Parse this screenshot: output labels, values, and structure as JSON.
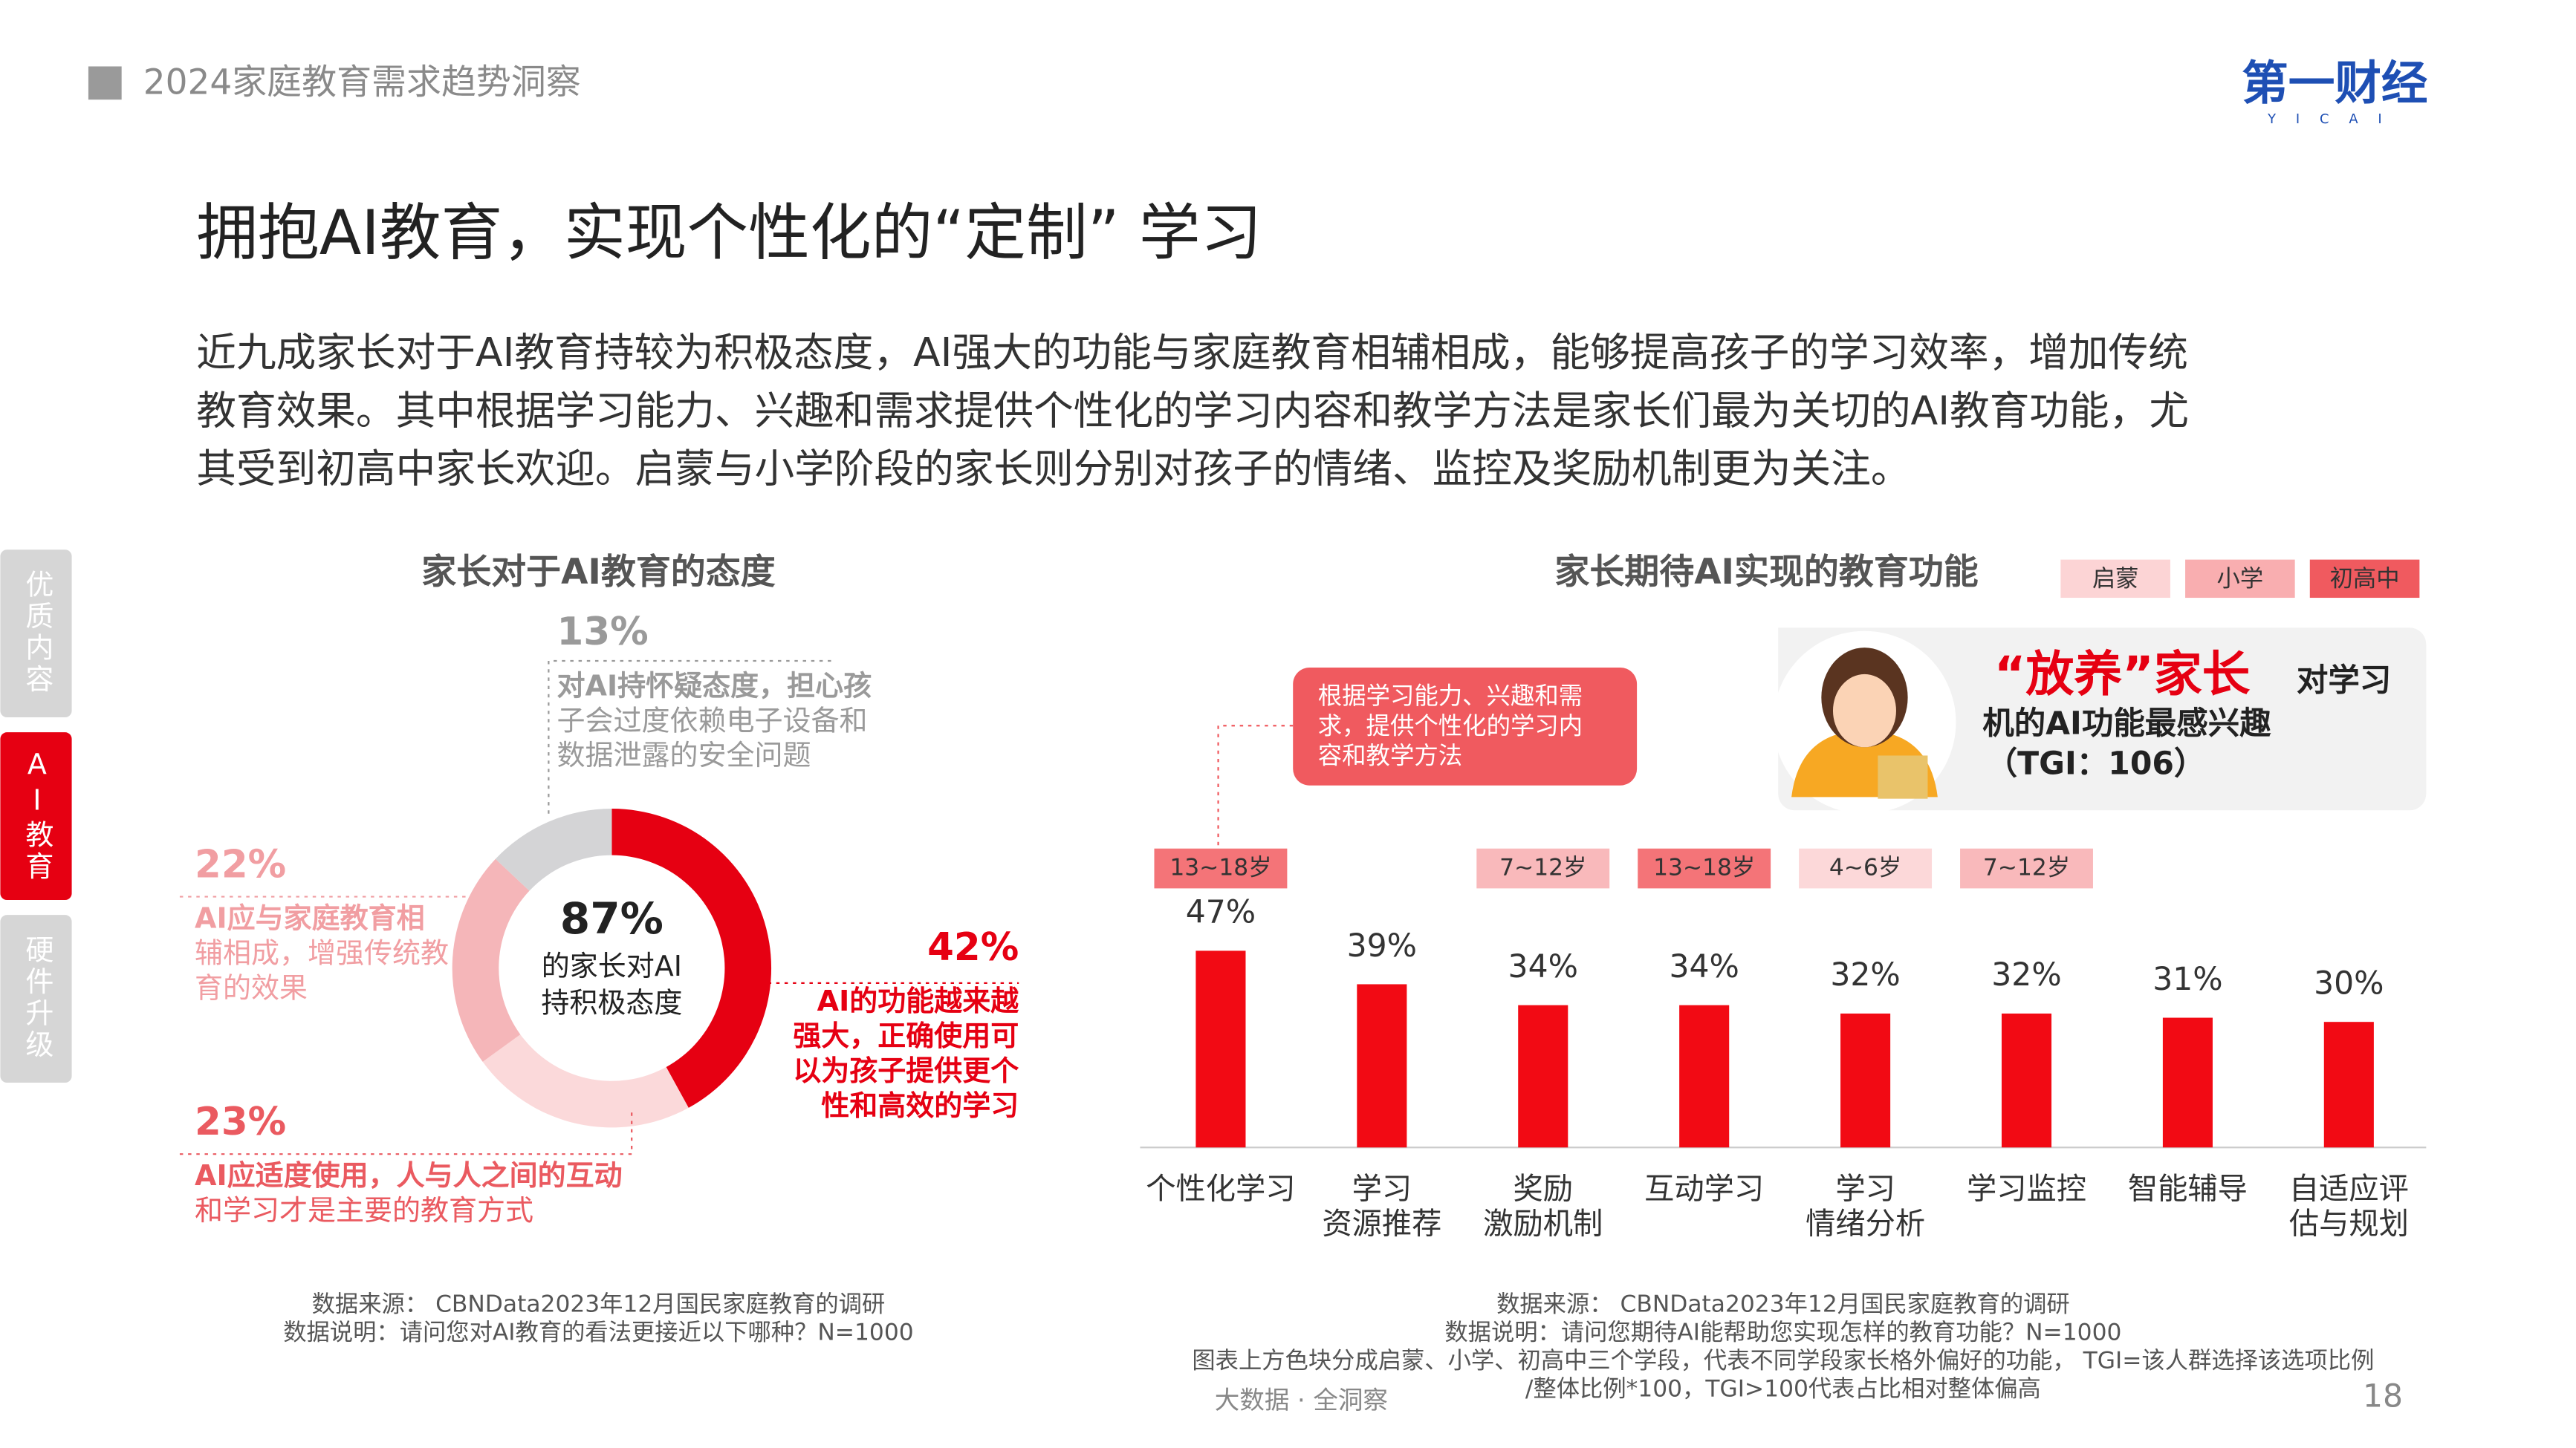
{
  "header": {
    "report": "2024家庭教育需求趋势洞察",
    "logo": "第一财经",
    "logo_sub": "YICAI"
  },
  "title": "拥抱AI教育，实现个性化的“定制” 学习",
  "body": [
    "近九成家长对于AI教育持较为积极态度，AI强大的功能与家庭教育相辅相成，能够提高孩子的学习效率，增加传统",
    "教育效果。其中根据学习能力、兴趣和需求提供个性化的学习内容和教学方法是家长们最为关切的AI教育功能，尤",
    "其受到初高中家长欢迎。启蒙与小学阶段的家长则分别对孩子的情绪、监控及奖励机制更为关注。"
  ],
  "side_tabs": [
    "优质内容",
    "AI教育",
    "硬件升级"
  ],
  "chart_data": [
    {
      "type": "donut",
      "title": "家长对于AI教育的态度",
      "center": [
        "87%",
        "的家长对AI",
        "持积极态度"
      ],
      "values": [
        42,
        23,
        22,
        13
      ],
      "value_labels": [
        "42%",
        "23%",
        "22%",
        "13%"
      ],
      "colors": [
        "#e60012",
        "#fbd9da",
        "#f5b6b9",
        "#d4d4d6"
      ],
      "label_colors": [
        "#e60012",
        "#ea5a60",
        "#f19ea2",
        "#9a9a9a"
      ],
      "annotations": [
        [
          "AI的功能越来越",
          "强大，正确使用可",
          "以为孩子提供更个",
          "性和高效的学习"
        ],
        [
          "AI应适度使用，人与人之间的互动",
          "和学习才是主要的教育方式"
        ],
        [
          "AI应与家庭教育相",
          "辅相成，增强传统教",
          "育的效果"
        ],
        [
          "对AI持怀疑态度，担心孩",
          "子会过度依赖电子设备和",
          "数据泄露的安全问题"
        ]
      ],
      "notes": [
        "数据来源： CBNData2023年12月国民家庭教育的调研",
        "数据说明：请问您对AI教育的看法更接近以下哪种？N=1000"
      ]
    },
    {
      "type": "bar",
      "title": "家长期待AI实现的教育功能",
      "categories": [
        [
          "个性化学习"
        ],
        [
          "学习",
          "资源推荐"
        ],
        [
          "奖励",
          "激励机制"
        ],
        [
          "互动学习"
        ],
        [
          "学习",
          "情绪分析"
        ],
        [
          "学习监控"
        ],
        [
          "智能辅导"
        ],
        [
          "自适应评",
          "估与规划"
        ]
      ],
      "values": [
        47,
        39,
        34,
        34,
        32,
        32,
        31,
        30
      ],
      "value_labels": [
        "47%",
        "39%",
        "34%",
        "34%",
        "32%",
        "32%",
        "31%",
        "30%"
      ],
      "color": "#f20a14",
      "ylim": [
        0,
        50
      ],
      "legend": [
        {
          "name": "启蒙",
          "color": "#fcd4d5"
        },
        {
          "name": "小学",
          "color": "#f9aeb0"
        },
        {
          "name": "初高中",
          "color": "#f05a5f"
        }
      ],
      "tags": [
        {
          "label": "13~18岁",
          "color": "#f47478"
        },
        null,
        {
          "label": "7~12岁",
          "color": "#f9b9bb"
        },
        {
          "label": "13~18岁",
          "color": "#f47478"
        },
        {
          "label": "4~6岁",
          "color": "#fcd8d9"
        },
        {
          "label": "7~12岁",
          "color": "#f9b9bb"
        },
        null,
        null
      ],
      "callout": [
        "根据学习能力、兴趣和需",
        "求，提供个性化的学习内",
        "容和教学方法"
      ],
      "persona": {
        "highlight": "“放养”家长",
        "tail": "对学习",
        "line2": "机的AI功能最感兴趣",
        "tgi": "（TGI：106）"
      },
      "notes": [
        "数据来源： CBNData2023年12月国民家庭教育的调研",
        "数据说明：请问您期待AI能帮助您实现怎样的教育功能？N=1000",
        "图表上方色块分成启蒙、小学、初高中三个学段，代表不同学段家长格外偏好的功能， TGI=该人群选择该选项比例",
        "/整体比例*100，TGI>100代表占比相对整体偏高"
      ]
    }
  ],
  "footer": {
    "slogan": "大数据 · 全洞察",
    "page": "18"
  }
}
